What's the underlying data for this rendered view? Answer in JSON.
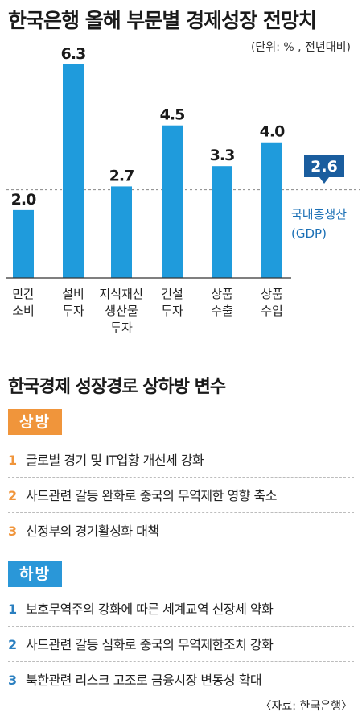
{
  "title": "한국은행 올해 부문별 경제성장 전망치",
  "unit": "(단위: % , 전년대비)",
  "chart_data": {
    "type": "bar",
    "categories": [
      [
        "민간",
        "소비"
      ],
      [
        "설비",
        "투자"
      ],
      [
        "지식재산",
        "생산물",
        "투자"
      ],
      [
        "건설",
        "투자"
      ],
      [
        "상품",
        "수출"
      ],
      [
        "상품",
        "수입"
      ]
    ],
    "values": [
      2.0,
      6.3,
      2.7,
      4.5,
      3.3,
      4.0
    ],
    "value_labels": [
      "2.0",
      "6.3",
      "2.7",
      "4.5",
      "3.3",
      "4.0"
    ],
    "reference_line": {
      "value": 2.6,
      "label": "2.6",
      "name_lines": [
        "국내총생산",
        "(GDP)"
      ]
    },
    "ylim": [
      0,
      6.3
    ],
    "grid": false,
    "colors": {
      "bar": "#1f9bdc",
      "label_box": "#1a5d9e",
      "reference_text": "#1a6fb5",
      "axis": "#333333"
    }
  },
  "factors": {
    "title": "한국경제 성장경로 상하방 변수",
    "upside": {
      "label": "상방",
      "color": "#f0953b",
      "items": [
        {
          "num": "1",
          "text": "글로벌 경기 및 IT업황 개선세 강화"
        },
        {
          "num": "2",
          "text": "사드관련 갈등 완화로 중국의 무역제한 영향 축소"
        },
        {
          "num": "3",
          "text": "신정부의 경기활성화 대책"
        }
      ]
    },
    "downside": {
      "label": "하방",
      "color": "#2a97d8",
      "items": [
        {
          "num": "1",
          "text": "보호무역주의 강화에 따른 세계교역 신장세 약화"
        },
        {
          "num": "2",
          "text": "사드관련 갈등 심화로 중국의 무역제한조치 강화"
        },
        {
          "num": "3",
          "text": "북한관련 리스크 고조로 금융시장 변동성 확대"
        }
      ]
    }
  },
  "source": "〈자료: 한국은행〉"
}
